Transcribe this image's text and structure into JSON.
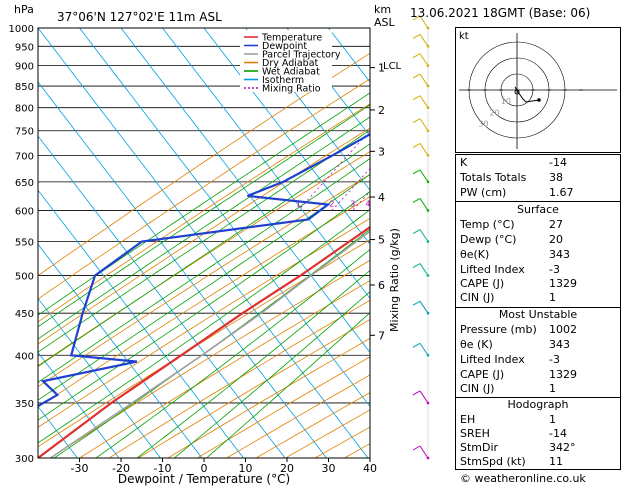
{
  "header": {
    "pressure_unit": "hPa",
    "location": "37°06'N 127°02'E 11m ASL",
    "height_unit": "km",
    "height_ref": "ASL",
    "datetime": "13.06.2021 18GMT (Base: 06)"
  },
  "legend": [
    {
      "label": "Temperature",
      "color": "#e03030"
    },
    {
      "label": "Dewpoint",
      "color": "#2040d0"
    },
    {
      "label": "Parcel Trajectory",
      "color": "#a0a0a0"
    },
    {
      "label": "Dry Adiabat",
      "color": "#e08000"
    },
    {
      "label": "Wet Adiabat",
      "color": "#00a000"
    },
    {
      "label": "Isotherm",
      "color": "#00a0e0"
    },
    {
      "label": "Mixing Ratio",
      "color": "#c000c0"
    }
  ],
  "chart_data": {
    "type": "line",
    "chart_kind": "skew-T log-P",
    "xlabel": "Dewpoint / Temperature (°C)",
    "ylabel": "Mixing Ratio (g/kg)",
    "xlim": [
      -40,
      40
    ],
    "ylim_hpa": [
      1000,
      300
    ],
    "x_ticks": [
      -30,
      -20,
      -10,
      0,
      10,
      20,
      30,
      40
    ],
    "pressure_levels": [
      300,
      350,
      400,
      450,
      500,
      550,
      600,
      650,
      700,
      750,
      800,
      850,
      900,
      950,
      1000
    ],
    "height_ticks": [
      {
        "p": 423,
        "label": "7"
      },
      {
        "p": 487,
        "label": "6"
      },
      {
        "p": 553,
        "label": "5"
      },
      {
        "p": 623,
        "label": "4"
      },
      {
        "p": 708,
        "label": "3"
      },
      {
        "p": 795,
        "label": "2"
      },
      {
        "p": 895,
        "label": "1"
      }
    ],
    "lcl": {
      "p": 902,
      "label": "LCL"
    },
    "mixing_ratio_labels": [
      "1",
      "2",
      "3",
      "4",
      "6",
      "8",
      "10",
      "16",
      "20",
      "25"
    ],
    "series": [
      {
        "name": "Temperature",
        "color": "#e03030",
        "points": [
          [
            1000,
            27
          ],
          [
            970,
            24.8
          ],
          [
            950,
            23.5
          ],
          [
            925,
            22.8
          ],
          [
            900,
            20.6
          ],
          [
            850,
            17
          ],
          [
            800,
            14.3
          ],
          [
            750,
            13.2
          ],
          [
            700,
            8.6
          ],
          [
            650,
            5.2
          ],
          [
            600,
            0
          ],
          [
            550,
            -5
          ],
          [
            500,
            -10.5
          ],
          [
            450,
            -17.5
          ],
          [
            400,
            -24.5
          ],
          [
            350,
            -32.5
          ],
          [
            300,
            -40
          ]
        ]
      },
      {
        "name": "Dewpoint",
        "color": "#2040d0",
        "points": [
          [
            1000,
            20
          ],
          [
            960,
            20
          ],
          [
            950,
            18.6
          ],
          [
            925,
            11
          ],
          [
            900,
            13.3
          ],
          [
            850,
            14.5
          ],
          [
            800,
            -1.3
          ],
          [
            750,
            -19
          ],
          [
            700,
            -25
          ],
          [
            650,
            -32
          ],
          [
            625,
            -38
          ],
          [
            610,
            -17
          ],
          [
            585,
            -19
          ],
          [
            550,
            -55
          ],
          [
            500,
            -60
          ],
          [
            450,
            -56
          ],
          [
            400,
            -51
          ],
          [
            393,
            -34
          ],
          [
            372,
            -53
          ],
          [
            358,
            -47
          ],
          [
            300,
            -62
          ]
        ]
      },
      {
        "name": "Parcel Trajectory",
        "color": "#a0a0a0",
        "points": [
          [
            1000,
            27
          ],
          [
            902,
            20
          ],
          [
            800,
            14.5
          ],
          [
            700,
            8.5
          ],
          [
            600,
            1
          ],
          [
            500,
            -8
          ],
          [
            450,
            -13
          ],
          [
            400,
            -19.5
          ],
          [
            350,
            -27.5
          ],
          [
            300,
            -37
          ]
        ]
      }
    ]
  },
  "hodograph": {
    "unit": "kt",
    "ring_labels": [
      "10",
      "20",
      "30"
    ]
  },
  "indices": [
    {
      "k": "K",
      "v": "-14"
    },
    {
      "k": "Totals Totals",
      "v": "38"
    },
    {
      "k": "PW (cm)",
      "v": "1.67"
    }
  ],
  "surface": {
    "title": "Surface",
    "rows": [
      {
        "k": "Temp (°C)",
        "v": "27"
      },
      {
        "k": "Dewp (°C)",
        "v": "20"
      },
      {
        "k": "θe(K)",
        "v": "343"
      },
      {
        "k": "Lifted Index",
        "v": "-3"
      },
      {
        "k": "CAPE (J)",
        "v": "1329"
      },
      {
        "k": "CIN (J)",
        "v": "1"
      }
    ]
  },
  "most_unstable": {
    "title": "Most Unstable",
    "rows": [
      {
        "k": "Pressure (mb)",
        "v": "1002"
      },
      {
        "k": "θe (K)",
        "v": "343"
      },
      {
        "k": "Lifted Index",
        "v": "-3"
      },
      {
        "k": "CAPE (J)",
        "v": "1329"
      },
      {
        "k": "CIN (J)",
        "v": "1"
      }
    ]
  },
  "hodograph_stats": {
    "title": "Hodograph",
    "rows": [
      {
        "k": "EH",
        "v": "1"
      },
      {
        "k": "SREH",
        "v": "-14"
      },
      {
        "k": "StmDir",
        "v": "342°"
      },
      {
        "k": "StmSpd (kt)",
        "v": "11"
      }
    ]
  },
  "copyright": "© weatheronline.co.uk"
}
